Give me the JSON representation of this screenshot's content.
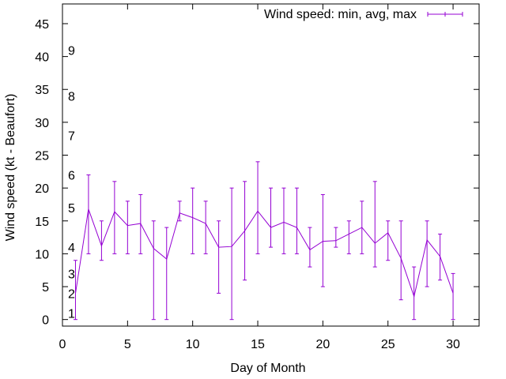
{
  "chart_data": {
    "type": "line",
    "title": "",
    "xlabel": "Day of Month",
    "ylabel": "Wind speed (kt - Beaufort)",
    "xlim": [
      0,
      32
    ],
    "ylim": [
      -1,
      48
    ],
    "xticks": [
      0,
      5,
      10,
      15,
      20,
      25,
      30
    ],
    "yticks": [
      0,
      5,
      10,
      15,
      20,
      25,
      30,
      35,
      40,
      45
    ],
    "legend": {
      "label": "Wind speed: min, avg, max",
      "position": "top-right"
    },
    "series_color": "#9400d3",
    "beaufort_labels": [
      {
        "label": "1",
        "kt": 1
      },
      {
        "label": "2",
        "kt": 4
      },
      {
        "label": "3",
        "kt": 7
      },
      {
        "label": "4",
        "kt": 11
      },
      {
        "label": "5",
        "kt": 17
      },
      {
        "label": "6",
        "kt": 22
      },
      {
        "label": "7",
        "kt": 28
      },
      {
        "label": "8",
        "kt": 34
      },
      {
        "label": "9",
        "kt": 41
      }
    ],
    "series": [
      {
        "name": "Wind speed: min, avg, max",
        "x": [
          1,
          2,
          3,
          4,
          5,
          6,
          7,
          8,
          9,
          10,
          11,
          12,
          13,
          14,
          15,
          16,
          17,
          18,
          19,
          20,
          21,
          22,
          23,
          24,
          25,
          26,
          27,
          28,
          29,
          30
        ],
        "avg": [
          4.0,
          16.8,
          11.2,
          16.4,
          14.3,
          14.6,
          10.8,
          9.2,
          16.2,
          15.5,
          14.6,
          11.0,
          11.1,
          13.5,
          16.5,
          14.0,
          14.8,
          14.0,
          10.6,
          11.9,
          12.0,
          13.0,
          14.0,
          11.6,
          13.2,
          9.3,
          3.5,
          12.1,
          9.6,
          4.0
        ],
        "min": [
          0,
          10,
          9,
          10,
          10,
          10,
          0,
          0,
          15,
          10,
          10,
          4,
          0,
          6,
          10,
          11,
          10,
          10,
          8,
          5,
          11,
          10,
          10,
          8,
          9,
          3,
          0,
          5,
          6,
          0
        ],
        "max": [
          9,
          22,
          15,
          21,
          18,
          19,
          15,
          14,
          18,
          20,
          18,
          15,
          20,
          21,
          24,
          20,
          20,
          20,
          14,
          19,
          14,
          15,
          18,
          21,
          15,
          15,
          8,
          15,
          13,
          7
        ]
      }
    ]
  }
}
